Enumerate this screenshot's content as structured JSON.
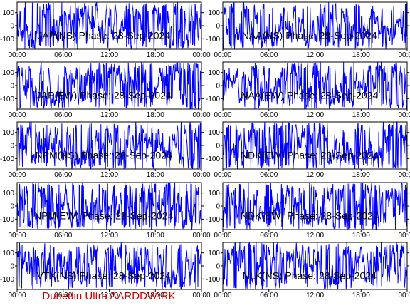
{
  "colors": {
    "trace": "#0000ff",
    "axes": "#000000",
    "footer": "#cc0000",
    "background": "#ffffff"
  },
  "footer": {
    "label": "Dunedin Ultra AARDDVARK"
  },
  "chart_data": [
    {
      "type": "line",
      "title": "JAP(NS) Phase: 28-Sep-2024",
      "x_tick_labels": [
        "00:00",
        "06:00",
        "12:00",
        "18:00",
        "00:00"
      ],
      "y_tick_labels": [
        "100",
        "0",
        "-100"
      ],
      "xlim": [
        "00:00",
        "24:00"
      ],
      "ylim": [
        -180,
        180
      ],
      "grid": false,
      "series": [
        {
          "seed": 11,
          "x_unit": "hours",
          "values": []
        }
      ]
    },
    {
      "type": "line",
      "title": "NAA(NS) Phase: 28-Sep-2024",
      "x_tick_labels": [
        "00:00",
        "06:00",
        "12:00",
        "18:00",
        "00:00"
      ],
      "y_tick_labels": [
        "100",
        "0",
        "-100"
      ],
      "xlim": [
        "00:00",
        "24:00"
      ],
      "ylim": [
        -180,
        180
      ],
      "grid": false,
      "series": [
        {
          "seed": 23,
          "x_unit": "hours",
          "values": []
        }
      ]
    },
    {
      "type": "line",
      "title": "JAP(EW) Phase: 28-Sep-2024",
      "x_tick_labels": [
        "00:00",
        "06:00",
        "12:00",
        "18:00",
        "00:00"
      ],
      "y_tick_labels": [
        "100",
        "0",
        "-100"
      ],
      "xlim": [
        "00:00",
        "24:00"
      ],
      "ylim": [
        -180,
        180
      ],
      "grid": false,
      "series": [
        {
          "seed": 37,
          "x_unit": "hours",
          "values": []
        }
      ]
    },
    {
      "type": "line",
      "title": "NAA(EW) Phase: 28-Sep-2024",
      "x_tick_labels": [
        "00:00",
        "06:00",
        "12:00",
        "18:00",
        "00:00"
      ],
      "y_tick_labels": [
        "100",
        "0",
        "-100"
      ],
      "xlim": [
        "00:00",
        "24:00"
      ],
      "ylim": [
        -180,
        180
      ],
      "grid": false,
      "series": [
        {
          "seed": 41,
          "x_unit": "hours",
          "values": []
        }
      ]
    },
    {
      "type": "line",
      "title": "NPM(NS) Phase: 28-Sep-2024",
      "x_tick_labels": [
        "00:00",
        "06:00",
        "12:00",
        "18:00",
        "00:00"
      ],
      "y_tick_labels": [
        "100",
        "0",
        "-100"
      ],
      "xlim": [
        "00:00",
        "24:00"
      ],
      "ylim": [
        -180,
        180
      ],
      "grid": false,
      "series": [
        {
          "seed": 53,
          "x_unit": "hours",
          "values": []
        }
      ]
    },
    {
      "type": "line",
      "title": "NDK(EW) Phase: 28-Sep-2024",
      "x_tick_labels": [
        "00:00",
        "06:00",
        "12:00",
        "18:00",
        "00:00"
      ],
      "y_tick_labels": [
        "100",
        "0",
        "-100"
      ],
      "xlim": [
        "00:00",
        "24:00"
      ],
      "ylim": [
        -180,
        180
      ],
      "grid": false,
      "series": [
        {
          "seed": 67,
          "x_unit": "hours",
          "values": []
        }
      ]
    },
    {
      "type": "line",
      "title": "NPM(EW) Phase: 28-Sep-2024",
      "x_tick_labels": [
        "00:00",
        "06:00",
        "12:00",
        "18:00",
        "00:00"
      ],
      "y_tick_labels": [
        "100",
        "0",
        "-100"
      ],
      "xlim": [
        "00:00",
        "24:00"
      ],
      "ylim": [
        -180,
        180
      ],
      "grid": false,
      "series": [
        {
          "seed": 71,
          "x_unit": "hours",
          "values": []
        }
      ]
    },
    {
      "type": "line",
      "title": "NDK(EW) Phase: 28-Sep-2024",
      "x_tick_labels": [
        "00:00",
        "06:00",
        "12:00",
        "18:00",
        "00:00"
      ],
      "y_tick_labels": [
        "100",
        "0",
        "-100"
      ],
      "xlim": [
        "00:00",
        "24:00"
      ],
      "ylim": [
        -180,
        180
      ],
      "grid": false,
      "series": [
        {
          "seed": 83,
          "x_unit": "hours",
          "values": []
        }
      ]
    },
    {
      "type": "line",
      "title": "VTX(NS) Phase: 28-Sep-2024",
      "x_tick_labels": [
        "00:00",
        "06:00",
        "12:00",
        "18:00",
        "00:00"
      ],
      "y_tick_labels": [
        "100",
        "0",
        "-100"
      ],
      "xlim": [
        "00:00",
        "24:00"
      ],
      "ylim": [
        -180,
        180
      ],
      "grid": false,
      "series": [
        {
          "seed": 97,
          "x_unit": "hours",
          "values": []
        }
      ]
    },
    {
      "type": "line",
      "title": "NLK(NS) Phase: 28-Sep-2024",
      "x_tick_labels": [
        "00:00",
        "06:00",
        "12:00",
        "18:00",
        "00:00"
      ],
      "y_tick_labels": [
        "100",
        "0",
        "-100"
      ],
      "xlim": [
        "00:00",
        "24:00"
      ],
      "ylim": [
        -180,
        180
      ],
      "grid": false,
      "series": [
        {
          "seed": 101,
          "x_unit": "hours",
          "values": []
        }
      ]
    }
  ]
}
